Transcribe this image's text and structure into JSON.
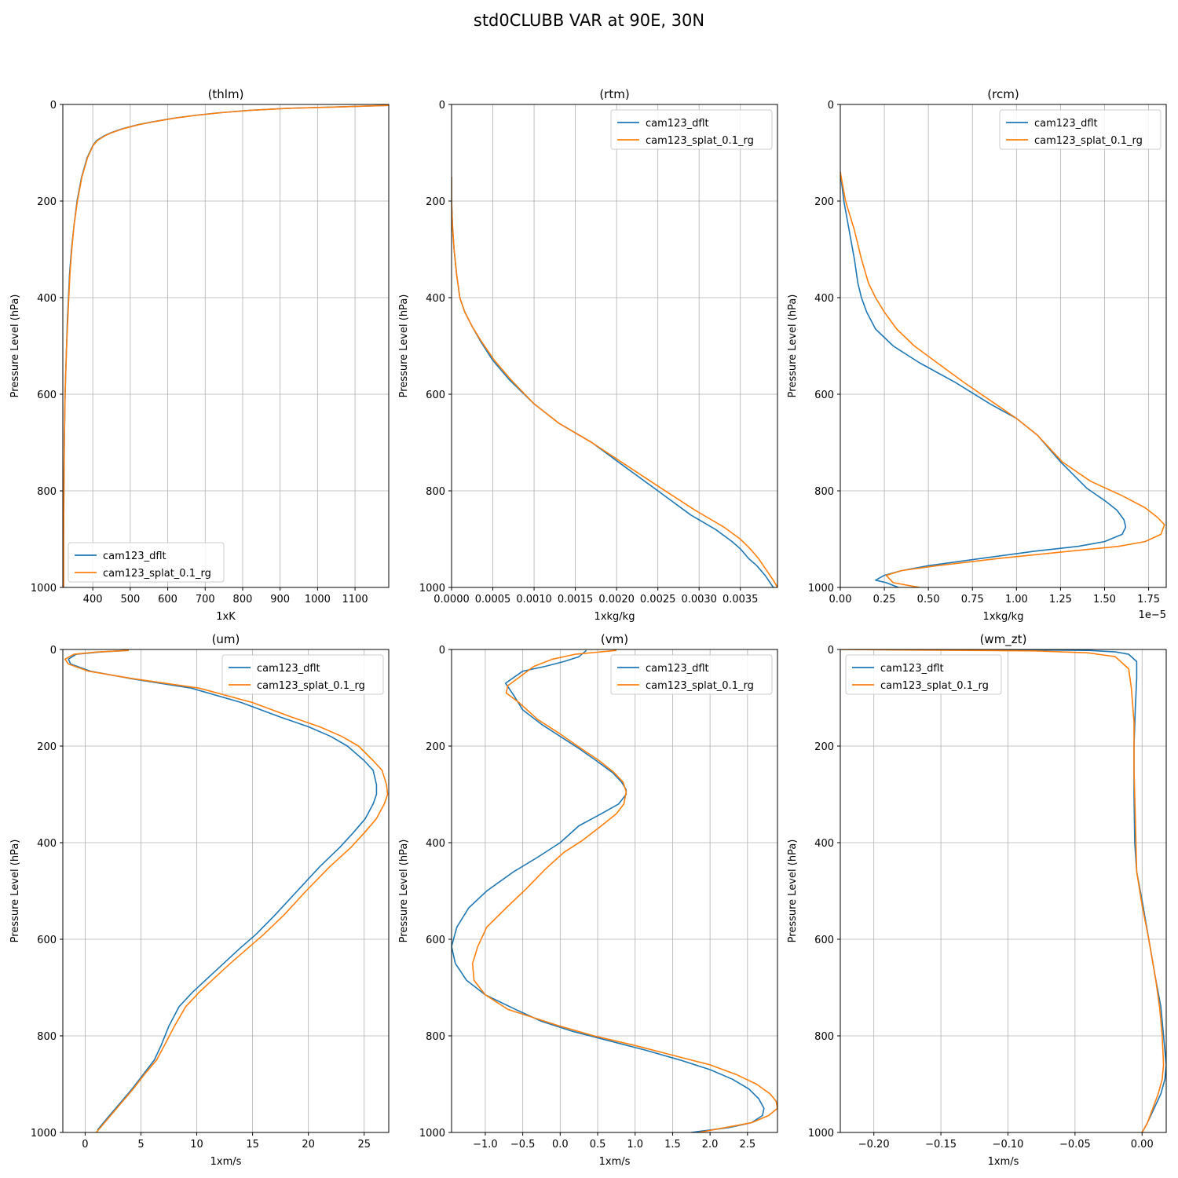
{
  "figure": {
    "title": "std0CLUBB VAR at 90E, 30N"
  },
  "colors": {
    "blue": "#1f77b4",
    "orange": "#ff7f0e",
    "grid": "#b0b0b0"
  },
  "chart_data": [
    {
      "type": "line",
      "title": "(thlm)",
      "xlabel": "1xK",
      "ylabel": "Pressure Level (hPa)",
      "xlim": [
        320,
        1190
      ],
      "ylim": [
        1000,
        0
      ],
      "xticks": [
        400,
        500,
        600,
        700,
        800,
        900,
        1000,
        1100
      ],
      "xtick_labels": [
        "400",
        "500",
        "600",
        "700",
        "800",
        "900",
        "1000",
        "1100"
      ],
      "yticks": [
        0,
        200,
        400,
        600,
        800,
        1000
      ],
      "ytick_labels": [
        "0",
        "200",
        "400",
        "600",
        "800",
        "1000"
      ],
      "grid": true,
      "legend": "lower-left",
      "series": [
        {
          "name": "cam123_dflt",
          "color": "#1f77b4",
          "x": [
            1190,
            1060,
            920,
            820,
            740,
            680,
            620,
            560,
            520,
            480,
            450,
            430,
            410,
            400,
            385,
            370,
            358,
            350,
            343,
            338,
            335,
            332,
            330,
            328,
            326,
            325,
            324,
            323,
            322,
            322
          ],
          "y": [
            2,
            5,
            8,
            12,
            17,
            22,
            28,
            36,
            42,
            50,
            58,
            65,
            75,
            85,
            110,
            150,
            200,
            250,
            300,
            350,
            400,
            450,
            500,
            550,
            600,
            650,
            700,
            800,
            900,
            1000
          ]
        },
        {
          "name": "cam123_splat_0.1_rg",
          "color": "#ff7f0e",
          "x": [
            1190,
            1062,
            922,
            822,
            742,
            682,
            622,
            562,
            522,
            482,
            452,
            432,
            412,
            401,
            386,
            371,
            359,
            350,
            344,
            339,
            336,
            333,
            330,
            328,
            326,
            325,
            324,
            323,
            322,
            322
          ],
          "y": [
            2,
            5,
            8,
            12,
            17,
            22,
            28,
            36,
            42,
            50,
            58,
            65,
            75,
            85,
            110,
            150,
            200,
            250,
            300,
            350,
            400,
            450,
            500,
            550,
            600,
            650,
            700,
            800,
            900,
            1000
          ]
        }
      ]
    },
    {
      "type": "line",
      "title": "(rtm)",
      "xlabel": "1xkg/kg",
      "ylabel": "Pressure Level (hPa)",
      "xlim": [
        0,
        0.00395
      ],
      "ylim": [
        1000,
        0
      ],
      "xticks": [
        0,
        0.0005,
        0.001,
        0.0015,
        0.002,
        0.0025,
        0.003,
        0.0035
      ],
      "xtick_labels": [
        "0.0000",
        "0.0005",
        "0.0010",
        "0.0015",
        "0.0020",
        "0.0025",
        "0.0030",
        "0.0035"
      ],
      "yticks": [
        0,
        200,
        400,
        600,
        800,
        1000
      ],
      "ytick_labels": [
        "0",
        "200",
        "400",
        "600",
        "800",
        "1000"
      ],
      "grid": true,
      "legend": "upper-right",
      "series": [
        {
          "name": "cam123_dflt",
          "color": "#1f77b4",
          "x": [
            0,
            0,
            1e-05,
            3e-05,
            6e-05,
            0.0001,
            0.00016,
            0.00025,
            0.00035,
            0.0005,
            0.0007,
            0.001,
            0.0013,
            0.0017,
            0.0021,
            0.0025,
            0.0029,
            0.0032,
            0.0034,
            0.0035,
            0.0036,
            0.0037,
            0.0038,
            0.0039
          ],
          "y": [
            150,
            200,
            250,
            300,
            350,
            400,
            430,
            460,
            490,
            530,
            570,
            620,
            660,
            700,
            750,
            800,
            850,
            880,
            905,
            920,
            940,
            955,
            975,
            1000
          ]
        },
        {
          "name": "cam123_splat_0.1_rg",
          "color": "#ff7f0e",
          "x": [
            0,
            0,
            1e-05,
            3e-05,
            6e-05,
            0.0001,
            0.00016,
            0.00025,
            0.00036,
            0.00052,
            0.00072,
            0.001,
            0.0013,
            0.0017,
            0.0021,
            0.0025,
            0.00295,
            0.0033,
            0.0035,
            0.00362,
            0.00372,
            0.0038,
            0.0039,
            0.00395
          ],
          "y": [
            150,
            200,
            250,
            300,
            350,
            400,
            430,
            460,
            490,
            530,
            570,
            620,
            660,
            700,
            745,
            790,
            840,
            875,
            900,
            920,
            940,
            960,
            985,
            1000
          ]
        }
      ]
    },
    {
      "type": "line",
      "title": "(rcm)",
      "xlabel": "1xkg/kg",
      "ylabel": "Pressure Level (hPa)",
      "x_offset_label": "1e−5",
      "xlim": [
        0,
        1.85
      ],
      "ylim": [
        1000,
        0
      ],
      "xticks": [
        0,
        0.25,
        0.5,
        0.75,
        1.0,
        1.25,
        1.5,
        1.75
      ],
      "xtick_labels": [
        "0.00",
        "0.25",
        "0.50",
        "0.75",
        "1.00",
        "1.25",
        "1.50",
        "1.75"
      ],
      "yticks": [
        0,
        200,
        400,
        600,
        800,
        1000
      ],
      "ytick_labels": [
        "0",
        "200",
        "400",
        "600",
        "800",
        "1000"
      ],
      "grid": true,
      "legend": "upper-right",
      "series": [
        {
          "name": "cam123_dflt",
          "color": "#1f77b4",
          "x": [
            0,
            0.02,
            0.05,
            0.08,
            0.1,
            0.12,
            0.15,
            0.2,
            0.3,
            0.45,
            0.65,
            0.85,
            1.0,
            1.12,
            1.25,
            1.4,
            1.5,
            1.57,
            1.61,
            1.62,
            1.6,
            1.5,
            1.35,
            1.1,
            0.8,
            0.5,
            0.35,
            0.25,
            0.2,
            0.26,
            0.33
          ],
          "y": [
            140,
            200,
            260,
            320,
            370,
            400,
            430,
            465,
            500,
            535,
            575,
            620,
            650,
            685,
            740,
            795,
            820,
            840,
            860,
            875,
            890,
            905,
            915,
            925,
            940,
            955,
            965,
            975,
            985,
            990,
            1000
          ]
        },
        {
          "name": "cam123_splat_0.1_rg",
          "color": "#ff7f0e",
          "x": [
            0,
            0.03,
            0.08,
            0.12,
            0.16,
            0.2,
            0.25,
            0.32,
            0.42,
            0.55,
            0.7,
            0.88,
            1.0,
            1.12,
            1.26,
            1.42,
            1.6,
            1.73,
            1.8,
            1.84,
            1.82,
            1.73,
            1.58,
            1.3,
            0.9,
            0.55,
            0.35,
            0.26,
            0.3,
            0.45
          ],
          "y": [
            140,
            200,
            260,
            320,
            370,
            400,
            430,
            465,
            500,
            535,
            575,
            620,
            650,
            685,
            740,
            780,
            810,
            835,
            855,
            870,
            890,
            905,
            915,
            925,
            940,
            955,
            965,
            975,
            990,
            1000
          ]
        }
      ]
    },
    {
      "type": "line",
      "title": "(um)",
      "xlabel": "1xm/s",
      "ylabel": "Pressure Level (hPa)",
      "xlim": [
        -2,
        27.2
      ],
      "ylim": [
        1000,
        0
      ],
      "xticks": [
        0,
        5,
        10,
        15,
        20,
        25
      ],
      "xtick_labels": [
        "0",
        "5",
        "10",
        "15",
        "20",
        "25"
      ],
      "yticks": [
        0,
        200,
        400,
        600,
        800,
        1000
      ],
      "ytick_labels": [
        "0",
        "200",
        "400",
        "600",
        "800",
        "1000"
      ],
      "grid": true,
      "legend": "upper-right",
      "series": [
        {
          "name": "cam123_dflt",
          "color": "#1f77b4",
          "x": [
            3.9,
            1.5,
            -0.8,
            -1.5,
            -1.3,
            0.5,
            4,
            9.5,
            14,
            17.5,
            20,
            22,
            23.5,
            25,
            25.8,
            26.1,
            26.1,
            25.8,
            25.1,
            24,
            22.8,
            21,
            19,
            17,
            15.3,
            13.8,
            12.4,
            11,
            9.6,
            8.4,
            7.5,
            6.8,
            6.2,
            5.2,
            4.2,
            3.1,
            2,
            1.1
          ],
          "y": [
            2,
            5,
            10,
            20,
            30,
            45,
            60,
            80,
            110,
            140,
            160,
            180,
            200,
            230,
            250,
            280,
            300,
            320,
            350,
            380,
            410,
            450,
            500,
            550,
            590,
            620,
            650,
            680,
            710,
            740,
            780,
            820,
            850,
            880,
            910,
            940,
            970,
            995
          ]
        },
        {
          "name": "cam123_splat_0.1_rg",
          "color": "#ff7f0e",
          "x": [
            3.9,
            1.2,
            -1.0,
            -1.8,
            -1.5,
            0.3,
            4.2,
            10.2,
            15,
            18.5,
            21,
            23,
            24.5,
            25.8,
            26.6,
            27,
            27.1,
            26.8,
            26.1,
            25,
            23.8,
            21.9,
            19.8,
            17.8,
            16,
            14.5,
            13,
            11.6,
            10.2,
            9,
            8,
            7.1,
            6.4,
            5.3,
            4.3,
            3.2,
            2.1,
            1.0
          ],
          "y": [
            2,
            5,
            10,
            20,
            30,
            45,
            60,
            80,
            110,
            140,
            160,
            180,
            200,
            230,
            250,
            280,
            300,
            320,
            350,
            380,
            410,
            450,
            500,
            550,
            590,
            620,
            650,
            680,
            710,
            740,
            780,
            820,
            850,
            880,
            910,
            940,
            970,
            1000
          ]
        }
      ]
    },
    {
      "type": "line",
      "title": "(vm)",
      "xlabel": "1xm/s",
      "ylabel": "Pressure Level (hPa)",
      "xlim": [
        -1.45,
        2.9
      ],
      "ylim": [
        1000,
        0
      ],
      "xticks": [
        -1.0,
        -0.5,
        0.0,
        0.5,
        1.0,
        1.5,
        2.0,
        2.5
      ],
      "xtick_labels": [
        "−1.0",
        "−0.5",
        "0.0",
        "0.5",
        "1.0",
        "1.5",
        "2.0",
        "2.5"
      ],
      "yticks": [
        0,
        200,
        400,
        600,
        800,
        1000
      ],
      "ytick_labels": [
        "0",
        "200",
        "400",
        "600",
        "800",
        "1000"
      ],
      "grid": true,
      "legend": "upper-right",
      "series": [
        {
          "name": "cam123_dflt",
          "color": "#1f77b4",
          "x": [
            0.35,
            0.25,
            0.05,
            -0.2,
            -0.5,
            -0.73,
            -0.62,
            -0.5,
            -0.25,
            0.0,
            0.25,
            0.48,
            0.7,
            0.82,
            0.88,
            0.88,
            0.78,
            0.55,
            0.25,
            0.0,
            -0.3,
            -0.62,
            -0.98,
            -1.22,
            -1.38,
            -1.45,
            -1.4,
            -1.25,
            -1.0,
            -0.6,
            -0.25,
            0.15,
            0.65,
            1.15,
            1.6,
            2.0,
            2.3,
            2.52,
            2.65,
            2.72,
            2.7,
            2.55,
            2.25,
            1.75
          ],
          "y": [
            2,
            15,
            25,
            35,
            45,
            70,
            95,
            125,
            155,
            180,
            205,
            230,
            255,
            275,
            290,
            300,
            320,
            340,
            365,
            400,
            430,
            460,
            500,
            535,
            575,
            615,
            650,
            685,
            715,
            745,
            770,
            790,
            810,
            830,
            850,
            870,
            890,
            910,
            930,
            950,
            965,
            980,
            990,
            1000
          ]
        },
        {
          "name": "cam123_splat_0.1_rg",
          "color": "#ff7f0e",
          "x": [
            0.75,
            0.2,
            -0.1,
            -0.35,
            -0.7,
            -0.72,
            -0.55,
            -0.3,
            0.0,
            0.28,
            0.52,
            0.72,
            0.84,
            0.88,
            0.85,
            0.75,
            0.55,
            0.3,
            0.05,
            -0.2,
            -0.45,
            -0.72,
            -0.98,
            -1.1,
            -1.17,
            -1.15,
            -1.0,
            -0.7,
            -0.3,
            0.0,
            0.45,
            1.0,
            1.5,
            2.0,
            2.35,
            2.62,
            2.8,
            2.88,
            2.9,
            2.78,
            2.55,
            2.2,
            1.85
          ],
          "y": [
            2,
            10,
            20,
            35,
            75,
            90,
            110,
            145,
            175,
            205,
            230,
            255,
            275,
            295,
            320,
            340,
            365,
            395,
            420,
            455,
            495,
            535,
            575,
            615,
            650,
            685,
            715,
            745,
            765,
            780,
            800,
            820,
            840,
            860,
            880,
            900,
            920,
            935,
            950,
            965,
            980,
            990,
            1000
          ]
        }
      ]
    },
    {
      "type": "line",
      "title": "(wm_zt)",
      "xlabel": "1xm/s",
      "ylabel": "Pressure Level (hPa)",
      "xlim": [
        -0.225,
        0.018
      ],
      "ylim": [
        1000,
        0
      ],
      "xticks": [
        -0.2,
        -0.15,
        -0.1,
        -0.05,
        0.0
      ],
      "xtick_labels": [
        "−0.20",
        "−0.15",
        "−0.10",
        "−0.05",
        "0.00"
      ],
      "yticks": [
        0,
        200,
        400,
        600,
        800,
        1000
      ],
      "ytick_labels": [
        "0",
        "200",
        "400",
        "600",
        "800",
        "1000"
      ],
      "grid": true,
      "legend": "upper-left",
      "series": [
        {
          "name": "cam123_dflt",
          "color": "#1f77b4",
          "x": [
            -0.11,
            -0.04,
            -0.02,
            -0.01,
            -0.004,
            -0.004,
            -0.005,
            -0.006,
            -0.006,
            -0.0055,
            -0.004,
            0.0,
            0.005,
            0.01,
            0.014,
            0.016,
            0.018,
            0.017,
            0.014,
            0.009,
            0.004,
            0.0
          ],
          "y": [
            0,
            2,
            5,
            10,
            25,
            60,
            120,
            200,
            300,
            400,
            460,
            520,
            600,
            680,
            740,
            800,
            860,
            890,
            920,
            950,
            980,
            1000
          ]
        },
        {
          "name": "cam123_splat_0.1_rg",
          "color": "#ff7f0e",
          "x": [
            -0.225,
            -0.08,
            -0.04,
            -0.02,
            -0.01,
            -0.008,
            -0.006,
            -0.006,
            -0.005,
            -0.004,
            0.0,
            0.005,
            0.01,
            0.013,
            0.015,
            0.016,
            0.015,
            0.012,
            0.008,
            0.004,
            0.0
          ],
          "y": [
            0,
            3,
            7,
            15,
            40,
            80,
            150,
            250,
            350,
            460,
            530,
            600,
            680,
            740,
            800,
            860,
            890,
            920,
            950,
            980,
            1000
          ]
        }
      ]
    }
  ]
}
